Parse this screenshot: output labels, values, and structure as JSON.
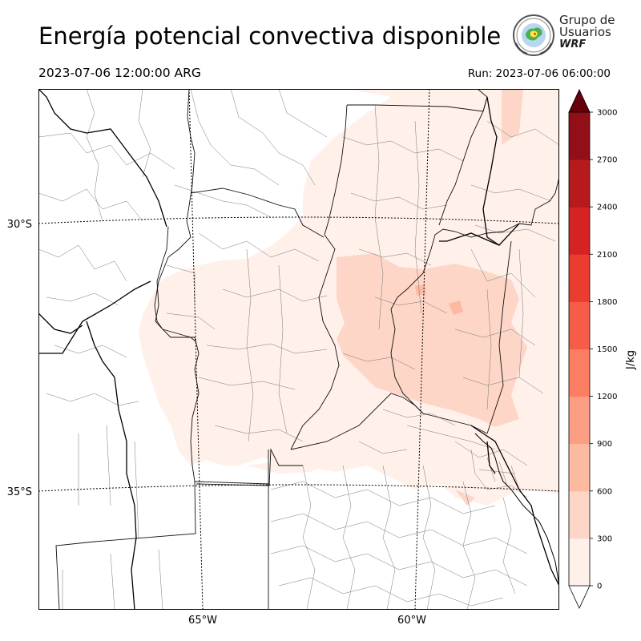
{
  "header": {
    "title": "Energía potencial convectiva disponible",
    "valid_time": "2023-07-06 12:00:00 ARG",
    "run_time": "Run: 2023-07-06 06:00:00"
  },
  "logo": {
    "line1": "Grupo de",
    "line2": "Usuarios",
    "line3": "WRF"
  },
  "map": {
    "lat_labels": [
      "30°S",
      "35°S"
    ],
    "lon_labels": [
      "65°W",
      "60°W"
    ]
  },
  "colorbar": {
    "unit": "J/kg",
    "levels": [
      0,
      300,
      600,
      900,
      1200,
      1500,
      1800,
      2100,
      2400,
      2700,
      3000
    ],
    "colors": [
      "#fff0ea",
      "#fdd6c8",
      "#fcbba1",
      "#fc9e83",
      "#fb7e62",
      "#f55d49",
      "#ea3d2f",
      "#d42322",
      "#b61a1c",
      "#920f17"
    ],
    "under_color": "#ffffff",
    "over_color": "#67000d"
  },
  "colors": {
    "light_fill": "#fff0ea",
    "medium_fill": "#fdd6c8",
    "darker_fill": "#fcbba1"
  }
}
